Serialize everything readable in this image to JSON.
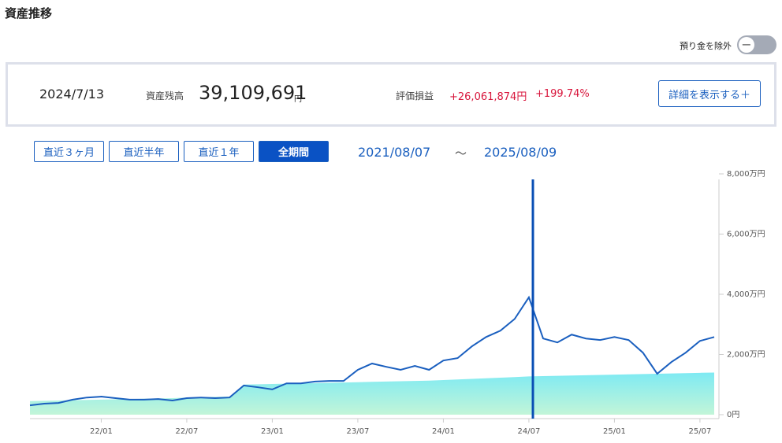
{
  "header": {
    "title": "資産推移",
    "toggle_label": "預り金を除外"
  },
  "summary": {
    "date": "2024/7/13",
    "balance_label": "資産残高",
    "balance": "39,109,691",
    "balance_unit": "円",
    "pl_label": "評価損益",
    "pl_amount": "+26,061,874円",
    "pl_percent": "+199.74%",
    "detail_button": "詳細を表示する＋"
  },
  "period_buttons": [
    "直近３ヶ月",
    "直近半年",
    "直近１年",
    "全期間"
  ],
  "range": {
    "start": "2021/08/07",
    "separator": "〜",
    "end": "2025/08/09"
  },
  "chart_data": {
    "type": "line",
    "categories": [
      "21/08",
      "21/09",
      "21/10",
      "21/11",
      "21/12",
      "22/01",
      "22/02",
      "22/03",
      "22/04",
      "22/05",
      "22/06",
      "22/07",
      "22/08",
      "22/09",
      "22/10",
      "22/11",
      "22/12",
      "23/01",
      "23/02",
      "23/03",
      "23/04",
      "23/05",
      "23/06",
      "23/07",
      "23/08",
      "23/09",
      "23/10",
      "23/11",
      "23/12",
      "24/01",
      "24/02",
      "24/03",
      "24/04",
      "24/05",
      "24/06",
      "24/07",
      "24/08",
      "24/09",
      "24/10",
      "24/11",
      "24/12",
      "25/01",
      "25/02",
      "25/03",
      "25/04",
      "25/05",
      "25/06",
      "25/07",
      "25/08"
    ],
    "xticks": [
      "22/01",
      "22/07",
      "23/01",
      "23/07",
      "24/01",
      "24/07",
      "25/01",
      "25/07"
    ],
    "series": [
      {
        "kind": "area",
        "color": "#7eeaf3",
        "values": [
          450,
          460,
          470,
          480,
          490,
          500,
          510,
          520,
          530,
          540,
          550,
          570,
          580,
          590,
          600,
          1000,
          1010,
          1020,
          1030,
          1040,
          1050,
          1060,
          1070,
          1080,
          1090,
          1100,
          1110,
          1120,
          1130,
          1150,
          1170,
          1190,
          1210,
          1230,
          1250,
          1270,
          1280,
          1290,
          1300,
          1310,
          1320,
          1330,
          1340,
          1350,
          1360,
          1370,
          1380,
          1390,
          1400
        ]
      },
      {
        "kind": "line",
        "color": "#1a5fbf",
        "values": [
          310,
          365,
          390,
          500,
          570,
          600,
          550,
          500,
          500,
          520,
          470,
          550,
          570,
          550,
          570,
          970,
          910,
          840,
          1040,
          1040,
          1100,
          1120,
          1120,
          1490,
          1700,
          1590,
          1490,
          1620,
          1490,
          1800,
          1880,
          2270,
          2580,
          2790,
          3180,
          3900,
          2530,
          2400,
          2660,
          2530,
          2480,
          2580,
          2480,
          2060,
          1360,
          1750,
          2060,
          2450,
          2580
        ]
      }
    ],
    "ylim": [
      0,
      8000
    ],
    "yticks": [
      {
        "value": 0,
        "label": "0円"
      },
      {
        "value": 2000,
        "label": "2,000万円"
      },
      {
        "value": 4000,
        "label": "4,000万円"
      },
      {
        "value": 6000,
        "label": "6,000万円"
      },
      {
        "value": 8000,
        "label": "8,000万円"
      }
    ]
  }
}
